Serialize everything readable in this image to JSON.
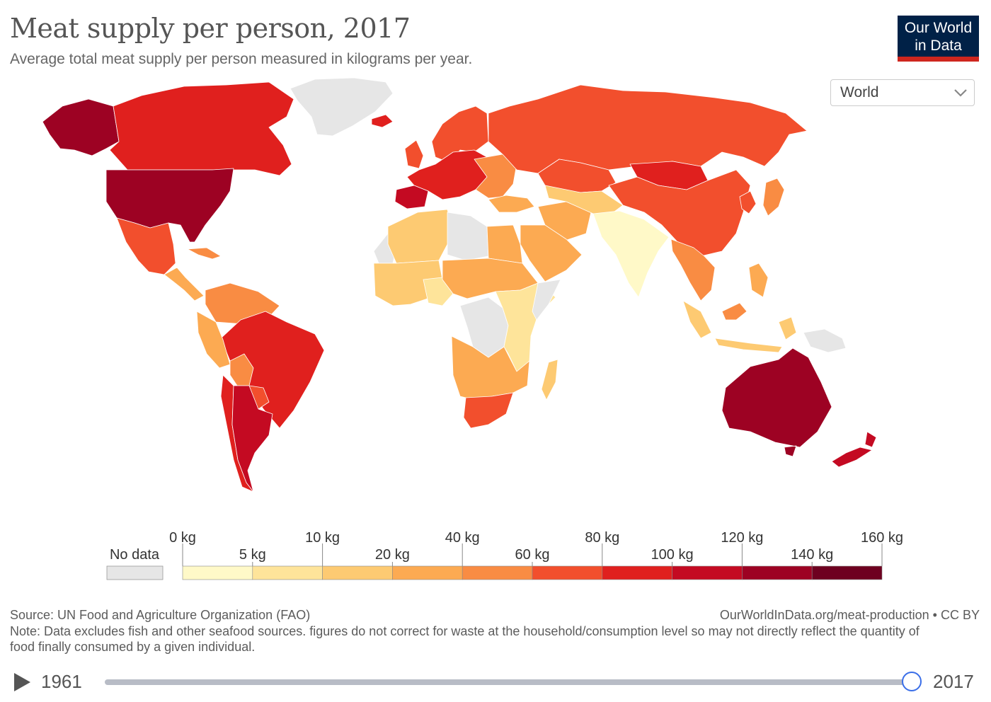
{
  "header": {
    "title": "Meat supply per person, 2017",
    "subtitle": "Average total meat supply per person measured in kilograms per year."
  },
  "logo": {
    "line1": "Our World",
    "line2": "in Data",
    "bg_color": "#002147",
    "accent_color": "#ce261e"
  },
  "region_select": {
    "value": "World",
    "icon": "chevron-down-icon"
  },
  "legend": {
    "no_data_label": "No data",
    "no_data_color": "#e6e6e6",
    "bins": [
      {
        "color": "#fff9c8"
      },
      {
        "color": "#fee49a"
      },
      {
        "color": "#fdca72"
      },
      {
        "color": "#fcaa52"
      },
      {
        "color": "#f98c43"
      },
      {
        "color": "#f24f2d"
      },
      {
        "color": "#e0201e"
      },
      {
        "color": "#c40a22"
      },
      {
        "color": "#9d0223"
      },
      {
        "color": "#6e0020"
      }
    ],
    "upper_labels": [
      "0 kg",
      "10 kg",
      "40 kg",
      "80 kg",
      "120 kg",
      "160 kg"
    ],
    "lower_labels": [
      "5 kg",
      "20 kg",
      "60 kg",
      "100 kg",
      "140 kg"
    ]
  },
  "footer": {
    "source": "Source: UN Food and Agriculture Organization (FAO)",
    "url": "OurWorldInData.org/meat-production • CC BY",
    "note": "Note: Data excludes fish and other seafood sources. figures do not correct for waste at the household/consumption level so may not directly reflect the quantity of food finally consumed by a given individual."
  },
  "timeline": {
    "start_year": "1961",
    "end_year": "2017",
    "position": 1.0,
    "play_icon": "play-icon"
  },
  "map_regions": [
    {
      "name": "Greenland",
      "color": "#e6e6e6"
    },
    {
      "name": "Alaska",
      "color": "#9d0223"
    },
    {
      "name": "Canada",
      "color": "#e0201e"
    },
    {
      "name": "United States",
      "color": "#9d0223"
    },
    {
      "name": "Mexico",
      "color": "#f24f2d"
    },
    {
      "name": "Central America",
      "color": "#fcaa52"
    },
    {
      "name": "Cuba",
      "color": "#f98c43"
    },
    {
      "name": "Northern South America",
      "color": "#f98c43"
    },
    {
      "name": "Brazil",
      "color": "#e0201e"
    },
    {
      "name": "Peru",
      "color": "#fcaa52"
    },
    {
      "name": "Bolivia",
      "color": "#f98c43"
    },
    {
      "name": "Paraguay",
      "color": "#f24f2d"
    },
    {
      "name": "Chile",
      "color": "#e0201e"
    },
    {
      "name": "Argentina",
      "color": "#c40a22"
    },
    {
      "name": "Iceland",
      "color": "#e0201e"
    },
    {
      "name": "Scandinavia",
      "color": "#f24f2d"
    },
    {
      "name": "United Kingdom",
      "color": "#f24f2d"
    },
    {
      "name": "Western Europe",
      "color": "#e0201e"
    },
    {
      "name": "Spain",
      "color": "#c40a22"
    },
    {
      "name": "Eastern Europe",
      "color": "#f98c43"
    },
    {
      "name": "Russia",
      "color": "#f24f2d"
    },
    {
      "name": "Kazakhstan",
      "color": "#f24f2d"
    },
    {
      "name": "Mongolia",
      "color": "#e0201e"
    },
    {
      "name": "China",
      "color": "#f24f2d"
    },
    {
      "name": "Korea",
      "color": "#f24f2d"
    },
    {
      "name": "Japan",
      "color": "#f98c43"
    },
    {
      "name": "Turkey",
      "color": "#fcaa52"
    },
    {
      "name": "Iran",
      "color": "#fcaa52"
    },
    {
      "name": "Central Asia",
      "color": "#fdca72"
    },
    {
      "name": "Arabian Peninsula",
      "color": "#fcaa52"
    },
    {
      "name": "India",
      "color": "#fff9c8"
    },
    {
      "name": "Southeast Asia",
      "color": "#f98c43"
    },
    {
      "name": "Malaysia",
      "color": "#f98c43"
    },
    {
      "name": "Indonesia",
      "color": "#fdca72"
    },
    {
      "name": "Papua New Guinea",
      "color": "#e6e6e6"
    },
    {
      "name": "Philippines",
      "color": "#fcaa52"
    },
    {
      "name": "Western Sahara",
      "color": "#e6e6e6"
    },
    {
      "name": "North Africa",
      "color": "#fdca72"
    },
    {
      "name": "Libya",
      "color": "#e6e6e6"
    },
    {
      "name": "Egypt",
      "color": "#fcaa52"
    },
    {
      "name": "West Africa",
      "color": "#fdca72"
    },
    {
      "name": "Nigeria",
      "color": "#fee49a"
    },
    {
      "name": "Central Africa",
      "color": "#fcaa52"
    },
    {
      "name": "DR Congo",
      "color": "#e6e6e6"
    },
    {
      "name": "East Africa",
      "color": "#fee49a"
    },
    {
      "name": "Somalia",
      "color": "#e6e6e6"
    },
    {
      "name": "Southern Africa",
      "color": "#fcaa52"
    },
    {
      "name": "South Africa",
      "color": "#f24f2d"
    },
    {
      "name": "Madagascar",
      "color": "#fdca72"
    },
    {
      "name": "Australia",
      "color": "#9d0223"
    },
    {
      "name": "New Zealand",
      "color": "#c40a22"
    }
  ]
}
